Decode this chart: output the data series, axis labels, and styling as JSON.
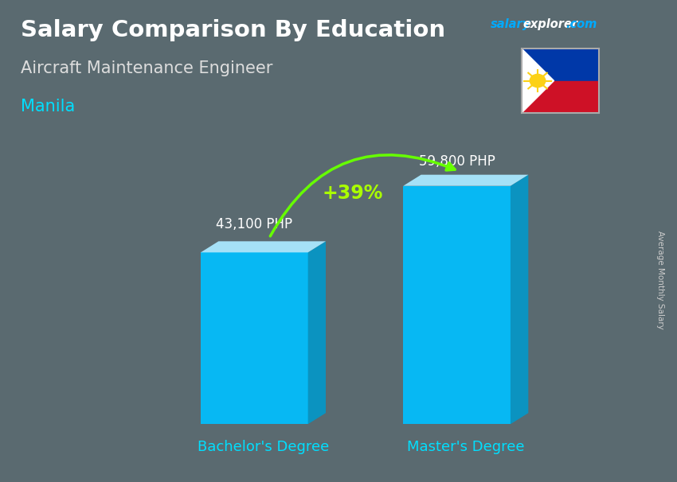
{
  "title": "Salary Comparison By Education",
  "subtitle": "Aircraft Maintenance Engineer",
  "location": "Manila",
  "ylabel": "Average Monthly Salary",
  "categories": [
    "Bachelor's Degree",
    "Master's Degree"
  ],
  "values": [
    43100,
    59800
  ],
  "value_labels": [
    "43,100 PHP",
    "59,800 PHP"
  ],
  "pct_change": "+39%",
  "bar_color_face": "#00BFFF",
  "bar_color_top": "#aae8ff",
  "bar_color_side": "#0099CC",
  "bg_color": "#5a6a70",
  "title_color": "#ffffff",
  "subtitle_color": "#dddddd",
  "location_color": "#00DFFF",
  "xlabel_color": "#00DFFF",
  "value_label_color": "#ffffff",
  "pct_color": "#aaff00",
  "arrow_color": "#66ff00",
  "watermark_salary_color": "#00aaff",
  "watermark_explorer_color": "#ffffff",
  "watermark_com_color": "#00aaff",
  "ylabel_color": "#cccccc",
  "ylim": [
    0,
    75000
  ],
  "bar_width": 0.18,
  "fig_width": 8.5,
  "fig_height": 6.06,
  "bar_positions": [
    0.28,
    0.62
  ]
}
